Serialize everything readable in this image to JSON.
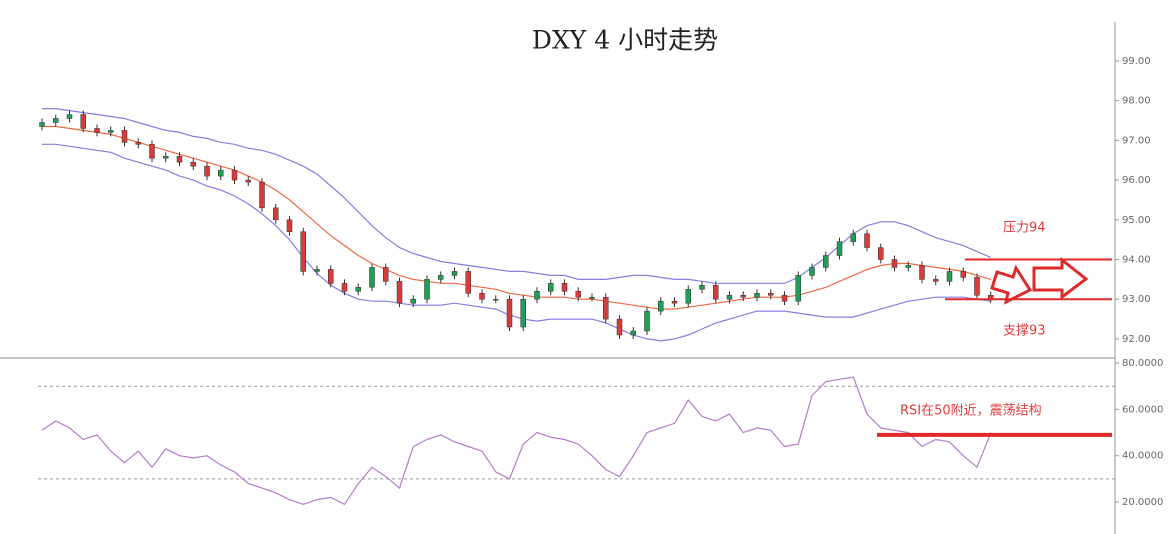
{
  "chart_data": [
    {
      "type": "candlestick",
      "title": "DXY 4 小时走势",
      "open": [
        97.35,
        97.45,
        97.55,
        97.65,
        97.3,
        97.2,
        97.25,
        96.95,
        96.9,
        96.55,
        96.6,
        96.45,
        96.35,
        96.1,
        96.25,
        96.0,
        95.95,
        95.3,
        95.0,
        94.7,
        93.7,
        93.75,
        93.4,
        93.2,
        93.3,
        93.8,
        93.45,
        92.9,
        93.0,
        93.5,
        93.6,
        93.7,
        93.15,
        93.0,
        93.0,
        92.3,
        93.0,
        93.2,
        93.4,
        93.2,
        93.05,
        93.05,
        92.5,
        92.1,
        92.2,
        92.7,
        92.95,
        92.9,
        93.25,
        93.35,
        93.0,
        93.1,
        93.05,
        93.15,
        93.1,
        92.95,
        93.6,
        93.8,
        94.1,
        94.45,
        94.65,
        94.3,
        94.0,
        93.8,
        93.85,
        93.5,
        93.45,
        93.7,
        93.55,
        93.1
      ],
      "high": [
        97.55,
        97.65,
        97.75,
        97.75,
        97.4,
        97.35,
        97.35,
        97.05,
        97.0,
        96.7,
        96.7,
        96.55,
        96.45,
        96.35,
        96.35,
        96.1,
        96.05,
        95.4,
        95.1,
        94.8,
        93.85,
        93.85,
        93.5,
        93.4,
        93.9,
        93.9,
        93.55,
        93.1,
        93.6,
        93.7,
        93.8,
        93.8,
        93.25,
        93.1,
        93.1,
        93.1,
        93.3,
        93.5,
        93.5,
        93.3,
        93.15,
        93.15,
        92.6,
        92.3,
        92.8,
        93.05,
        93.05,
        93.35,
        93.45,
        93.45,
        93.2,
        93.2,
        93.25,
        93.25,
        93.2,
        93.7,
        93.9,
        94.2,
        94.55,
        94.75,
        94.75,
        94.4,
        94.1,
        93.95,
        93.95,
        93.6,
        93.8,
        93.8,
        93.65,
        93.2
      ],
      "low": [
        97.25,
        97.35,
        97.45,
        97.2,
        97.1,
        97.1,
        96.85,
        96.8,
        96.45,
        96.45,
        96.35,
        96.25,
        96.0,
        96.0,
        95.9,
        95.85,
        95.2,
        94.9,
        94.6,
        93.6,
        93.6,
        93.3,
        93.1,
        93.1,
        93.2,
        93.35,
        92.8,
        92.8,
        92.9,
        93.4,
        93.5,
        93.05,
        92.9,
        92.9,
        92.2,
        92.2,
        92.9,
        93.1,
        93.1,
        92.95,
        92.95,
        92.4,
        92.0,
        92.0,
        92.1,
        92.6,
        92.8,
        92.8,
        93.15,
        92.9,
        92.9,
        92.95,
        92.95,
        93.0,
        92.85,
        92.85,
        93.5,
        93.7,
        94.0,
        94.35,
        94.2,
        93.9,
        93.7,
        93.7,
        93.4,
        93.35,
        93.35,
        93.45,
        93.0,
        92.9
      ],
      "close": [
        97.45,
        97.55,
        97.65,
        97.3,
        97.2,
        97.25,
        96.95,
        96.9,
        96.55,
        96.6,
        96.45,
        96.35,
        96.1,
        96.25,
        96.0,
        95.95,
        95.3,
        95.0,
        94.7,
        93.7,
        93.75,
        93.4,
        93.2,
        93.3,
        93.8,
        93.45,
        92.9,
        93.0,
        93.5,
        93.6,
        93.7,
        93.15,
        93.0,
        93.0,
        92.3,
        93.0,
        93.2,
        93.4,
        93.2,
        93.05,
        93.05,
        92.5,
        92.1,
        92.2,
        92.7,
        92.95,
        92.9,
        93.25,
        93.35,
        93.0,
        93.1,
        93.05,
        93.15,
        93.1,
        92.95,
        93.6,
        93.8,
        94.1,
        94.45,
        94.65,
        94.3,
        94.0,
        93.8,
        93.85,
        93.5,
        93.45,
        93.7,
        93.55,
        93.1,
        93.0
      ],
      "up_color": "#1f9e55",
      "down_color": "#d93a3a",
      "overlays": [
        {
          "color": "#8c7be0",
          "values": [
            97.8,
            97.8,
            97.75,
            97.7,
            97.65,
            97.6,
            97.55,
            97.45,
            97.35,
            97.25,
            97.2,
            97.1,
            97.05,
            96.95,
            96.9,
            96.8,
            96.75,
            96.65,
            96.5,
            96.35,
            96.15,
            95.85,
            95.55,
            95.2,
            94.85,
            94.55,
            94.3,
            94.15,
            94.05,
            93.95,
            93.9,
            93.85,
            93.8,
            93.75,
            93.7,
            93.7,
            93.65,
            93.6,
            93.6,
            93.5,
            93.5,
            93.5,
            93.55,
            93.6,
            93.6,
            93.55,
            93.5,
            93.5,
            93.45,
            93.4,
            93.4,
            93.4,
            93.4,
            93.4,
            93.4,
            93.55,
            93.8,
            94.05,
            94.35,
            94.65,
            94.85,
            94.95,
            94.95,
            94.85,
            94.7,
            94.55,
            94.45,
            94.35,
            94.2,
            94.05
          ]
        },
        {
          "color": "#ec6a44",
          "values": [
            97.35,
            97.35,
            97.3,
            97.25,
            97.2,
            97.15,
            97.05,
            96.95,
            96.85,
            96.75,
            96.65,
            96.55,
            96.45,
            96.35,
            96.25,
            96.1,
            95.95,
            95.75,
            95.5,
            95.2,
            94.9,
            94.6,
            94.35,
            94.1,
            93.9,
            93.75,
            93.6,
            93.5,
            93.45,
            93.4,
            93.4,
            93.35,
            93.3,
            93.25,
            93.15,
            93.1,
            93.05,
            93.05,
            93.05,
            93.0,
            93.0,
            92.95,
            92.9,
            92.85,
            92.8,
            92.75,
            92.75,
            92.8,
            92.85,
            92.9,
            92.95,
            93.0,
            93.05,
            93.05,
            93.05,
            93.1,
            93.2,
            93.3,
            93.45,
            93.6,
            93.75,
            93.85,
            93.9,
            93.9,
            93.85,
            93.8,
            93.75,
            93.7,
            93.6,
            93.5
          ]
        },
        {
          "color": "#8c7be0",
          "values": [
            96.9,
            96.9,
            96.85,
            96.8,
            96.75,
            96.7,
            96.55,
            96.45,
            96.35,
            96.25,
            96.1,
            96.0,
            95.85,
            95.75,
            95.6,
            95.4,
            95.15,
            94.85,
            94.5,
            94.05,
            93.65,
            93.35,
            93.15,
            93.0,
            92.95,
            92.95,
            92.9,
            92.85,
            92.85,
            92.85,
            92.9,
            92.85,
            92.8,
            92.75,
            92.6,
            92.5,
            92.45,
            92.5,
            92.5,
            92.5,
            92.5,
            92.4,
            92.25,
            92.1,
            92.0,
            91.95,
            92.0,
            92.1,
            92.25,
            92.4,
            92.5,
            92.6,
            92.7,
            92.7,
            92.7,
            92.65,
            92.6,
            92.55,
            92.55,
            92.55,
            92.65,
            92.75,
            92.85,
            92.95,
            93.0,
            93.05,
            93.05,
            93.05,
            93.0,
            92.95
          ]
        }
      ],
      "ylim": [
        91.52,
        99.98
      ],
      "yticks": [
        {
          "value": 92,
          "label": "92.00"
        },
        {
          "value": 93,
          "label": "93.00"
        },
        {
          "value": 94,
          "label": "94.00"
        },
        {
          "value": 95,
          "label": "95.00"
        },
        {
          "value": 96,
          "label": "96.00"
        },
        {
          "value": 97,
          "label": "97.00"
        },
        {
          "value": 98,
          "label": "98.00"
        },
        {
          "value": 99,
          "label": "99.00"
        }
      ],
      "annotations": [
        {
          "text": "压力94",
          "value": 94
        },
        {
          "text": "支撑93",
          "value": 93
        }
      ]
    },
    {
      "type": "line",
      "color": "#b27cc8",
      "values": [
        51,
        55,
        52,
        47,
        49,
        42,
        37,
        42,
        35,
        43,
        40,
        39,
        40,
        36,
        33,
        28,
        26,
        24,
        21,
        19,
        21,
        22,
        19,
        28,
        35,
        31,
        26,
        44,
        47,
        49,
        46,
        44,
        42,
        33,
        30,
        45,
        50,
        48,
        47,
        45,
        40,
        34,
        31,
        40,
        50,
        52,
        54,
        64,
        57,
        55,
        58,
        50,
        52,
        51,
        44,
        45,
        66,
        72,
        73,
        74,
        58,
        52,
        51,
        50,
        44,
        47,
        46,
        40,
        35,
        50
      ],
      "ylim": [
        6.2,
        82.2
      ],
      "yticks": [
        {
          "value": 20,
          "label": "20.0000"
        },
        {
          "value": 40,
          "label": "40.0000"
        },
        {
          "value": 60,
          "label": "60.0000"
        },
        {
          "value": 80,
          "label": "80.0000"
        }
      ],
      "reference_lines": [
        30,
        70
      ],
      "annotations": [
        {
          "text": "RSI在50附近，震荡结构",
          "value": 49
        }
      ]
    }
  ]
}
